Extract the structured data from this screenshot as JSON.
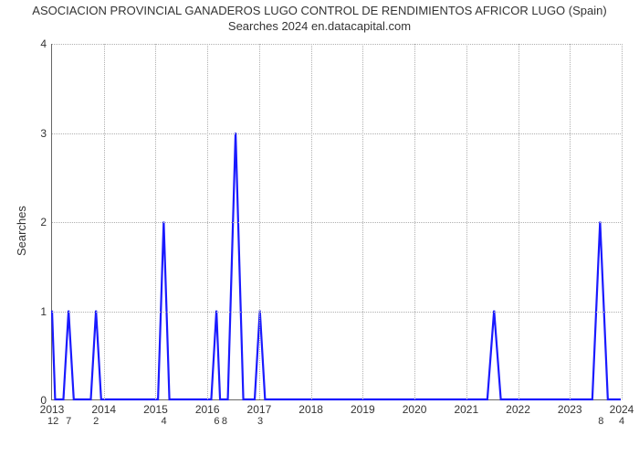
{
  "chart": {
    "type": "line",
    "title_line1": "ASOCIACION PROVINCIAL GANADEROS LUGO CONTROL DE RENDIMIENTOS AFRICOR LUGO (Spain)",
    "title_line2": "Searches 2024 en.datacapital.com",
    "title_fontsize": 13,
    "title_color": "#333333",
    "background_color": "#ffffff",
    "line_color": "#1a1aff",
    "line_width": 2.2,
    "grid_color": "#b0b0b0",
    "axis_color": "#666666",
    "label_fontsize": 12,
    "y_axis_label": "Searches",
    "ylim": [
      0,
      4
    ],
    "ytick_step": 1,
    "y_ticks": [
      0,
      1,
      2,
      3,
      4
    ],
    "xlim": [
      2013,
      2024
    ],
    "x_ticks": [
      2013,
      2014,
      2015,
      2016,
      2017,
      2018,
      2019,
      2020,
      2021,
      2022,
      2023,
      2024
    ],
    "value_labels": [
      {
        "x": 2013.02,
        "text": "12"
      },
      {
        "x": 2013.32,
        "text": "7"
      },
      {
        "x": 2013.85,
        "text": "2"
      },
      {
        "x": 2015.16,
        "text": "4"
      },
      {
        "x": 2016.18,
        "text": "6"
      },
      {
        "x": 2016.33,
        "text": "8"
      },
      {
        "x": 2017.02,
        "text": "3"
      },
      {
        "x": 2023.6,
        "text": "8"
      },
      {
        "x": 2024.0,
        "text": "4"
      }
    ],
    "points": [
      {
        "x": 2013.0,
        "y": 1.0
      },
      {
        "x": 2013.06,
        "y": 0.0
      },
      {
        "x": 2013.22,
        "y": 0.0
      },
      {
        "x": 2013.32,
        "y": 1.0
      },
      {
        "x": 2013.42,
        "y": 0.0
      },
      {
        "x": 2013.75,
        "y": 0.0
      },
      {
        "x": 2013.85,
        "y": 1.0
      },
      {
        "x": 2013.95,
        "y": 0.0
      },
      {
        "x": 2015.05,
        "y": 0.0
      },
      {
        "x": 2015.16,
        "y": 2.0
      },
      {
        "x": 2015.27,
        "y": 0.0
      },
      {
        "x": 2016.08,
        "y": 0.0
      },
      {
        "x": 2016.18,
        "y": 1.0
      },
      {
        "x": 2016.25,
        "y": 0.0
      },
      {
        "x": 2016.4,
        "y": 0.0
      },
      {
        "x": 2016.55,
        "y": 3.0
      },
      {
        "x": 2016.7,
        "y": 0.0
      },
      {
        "x": 2016.92,
        "y": 0.0
      },
      {
        "x": 2017.02,
        "y": 1.0
      },
      {
        "x": 2017.12,
        "y": 0.0
      },
      {
        "x": 2021.42,
        "y": 0.0
      },
      {
        "x": 2021.55,
        "y": 1.0
      },
      {
        "x": 2021.68,
        "y": 0.0
      },
      {
        "x": 2023.45,
        "y": 0.0
      },
      {
        "x": 2023.6,
        "y": 2.0
      },
      {
        "x": 2023.75,
        "y": 0.0
      },
      {
        "x": 2024.0,
        "y": 0.0
      }
    ]
  }
}
